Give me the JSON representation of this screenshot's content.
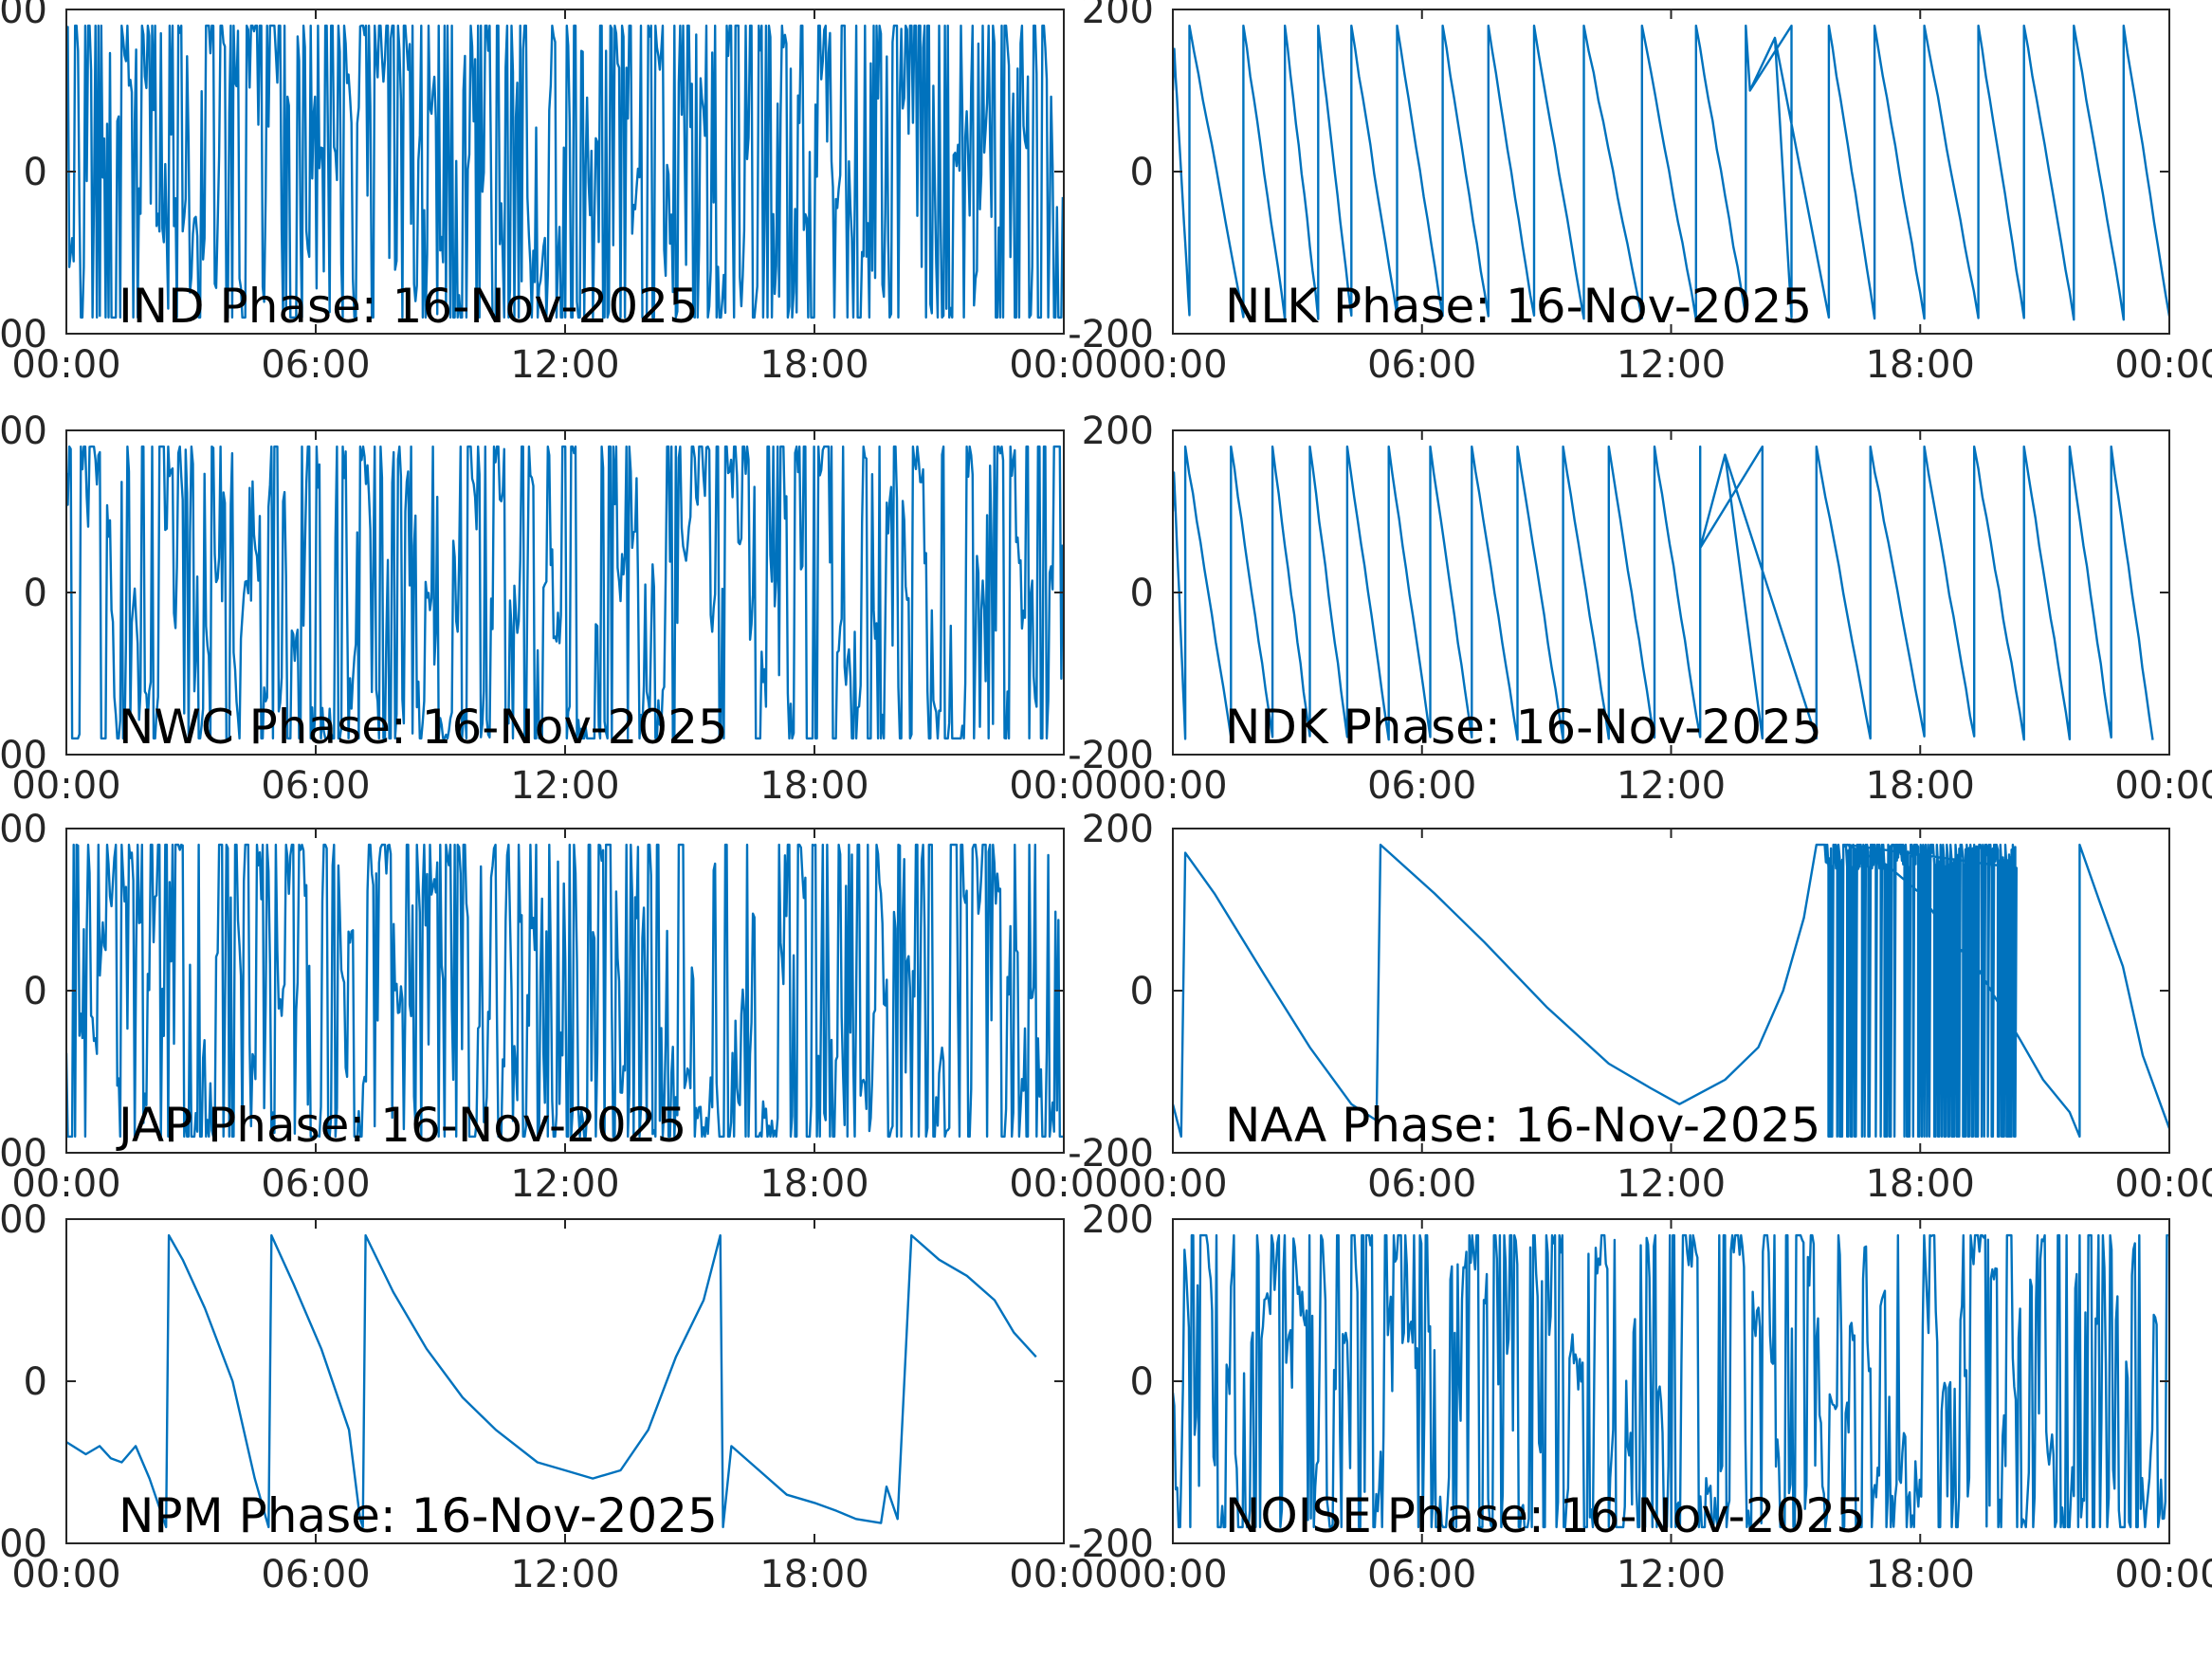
{
  "chart_data": {
    "type": "line",
    "layout": "4x2 grid",
    "x_ticks": [
      "00:00",
      "06:00",
      "12:00",
      "18:00",
      "00:00"
    ],
    "xlim_hours": [
      0,
      24
    ],
    "y_ticks": [
      200,
      0,
      -200
    ],
    "ylim": [
      -200,
      200
    ],
    "series_color": "#0072BD",
    "panels": [
      {
        "title": "IND Phase: 16-Nov-2025",
        "pattern": "noise",
        "density": 0.78
      },
      {
        "title": "NLK Phase: 16-Nov-2025",
        "pattern": "sawtooth",
        "wraps": [
          0.4,
          1.7,
          2.7,
          3.5,
          4.3,
          5.4,
          6.5,
          7.6,
          8.7,
          9.9,
          11.3,
          12.6,
          13.8,
          14.9,
          15.8,
          16.9,
          18.1,
          19.4,
          20.5,
          21.7,
          22.9,
          24.0
        ],
        "bump": {
          "t0": 13.2,
          "t1": 15.8,
          "min": 100,
          "peak": 165
        }
      },
      {
        "title": "NWC Phase: 16-Nov-2025",
        "pattern": "noise",
        "density": 0.55
      },
      {
        "title": "NDK Phase: 16-Nov-2025",
        "pattern": "sawtooth",
        "wraps": [
          0.3,
          1.4,
          2.4,
          3.3,
          4.2,
          5.2,
          6.2,
          7.2,
          8.3,
          9.4,
          10.5,
          11.6,
          12.7,
          14.2,
          15.5,
          16.8,
          18.1,
          19.3,
          20.5,
          21.6,
          22.6,
          23.6
        ],
        "bump": {
          "t0": 12.0,
          "t1": 14.6,
          "min": 55,
          "peak": 170
        }
      },
      {
        "title": "JAP Phase: 16-Nov-2025",
        "pattern": "noise",
        "density": 0.62
      },
      {
        "title": "NAA Phase: 16-Nov-2025",
        "pattern": "piecewise",
        "points": [
          [
            0,
            -140
          ],
          [
            0.2,
            -180
          ],
          [
            0.3,
            170
          ],
          [
            1.0,
            120
          ],
          [
            2.2,
            20
          ],
          [
            3.3,
            -70
          ],
          [
            4.3,
            -140
          ],
          [
            4.9,
            -160
          ],
          [
            4.9,
            -180
          ],
          [
            5.0,
            180
          ],
          [
            6.3,
            120
          ],
          [
            7.5,
            60
          ],
          [
            9.0,
            -20
          ],
          [
            10.5,
            -90
          ],
          [
            11.5,
            -120
          ],
          [
            12.2,
            -140
          ],
          [
            13.3,
            -110
          ],
          [
            14.1,
            -70
          ],
          [
            14.7,
            0
          ],
          [
            15.2,
            90
          ],
          [
            15.5,
            180
          ]
        ],
        "noise_block": [
          15.7,
          20.3
        ],
        "tail": [
          [
            20.3,
            180
          ],
          [
            21.5,
            155
          ],
          [
            22.5,
            120
          ],
          [
            23.5,
            60
          ],
          [
            24.2,
            30
          ],
          [
            25.5,
            -60
          ],
          [
            26.2,
            -110
          ],
          [
            27.0,
            -150
          ],
          [
            27.3,
            -180
          ],
          [
            27.3,
            180
          ],
          [
            27.9,
            110
          ],
          [
            28.6,
            30
          ],
          [
            29.2,
            -80
          ],
          [
            30.0,
            -170
          ]
        ],
        "spikes": [
          0.3,
          4.95,
          9.5,
          14.0
        ]
      },
      {
        "title": "NPM Phase: 16-Nov-2025",
        "pattern": "piecewise",
        "points": [
          [
            0,
            -75
          ],
          [
            0.7,
            -90
          ],
          [
            1.2,
            -80
          ],
          [
            1.6,
            -95
          ],
          [
            2.0,
            -100
          ],
          [
            2.5,
            -80
          ],
          [
            3.0,
            -120
          ],
          [
            3.6,
            -180
          ],
          [
            3.7,
            180
          ],
          [
            4.2,
            150
          ],
          [
            5.0,
            90
          ],
          [
            6.0,
            0
          ],
          [
            6.8,
            -120
          ],
          [
            7.3,
            -180
          ],
          [
            7.4,
            180
          ],
          [
            8.2,
            120
          ],
          [
            9.2,
            40
          ],
          [
            10.2,
            -60
          ],
          [
            10.6,
            -170
          ],
          [
            10.7,
            -180
          ],
          [
            10.8,
            180
          ],
          [
            11.8,
            110
          ],
          [
            13.0,
            40
          ],
          [
            14.3,
            -20
          ],
          [
            15.5,
            -60
          ],
          [
            17.0,
            -100
          ],
          [
            18.0,
            -110
          ],
          [
            19.0,
            -120
          ],
          [
            20.0,
            -110
          ],
          [
            21.0,
            -60
          ],
          [
            22.0,
            30
          ],
          [
            23.0,
            100
          ],
          [
            23.6,
            180
          ],
          [
            23.7,
            -180
          ],
          [
            24.0,
            -80
          ],
          [
            25.0,
            -110
          ],
          [
            26.0,
            -140
          ],
          [
            27.0,
            -150
          ],
          [
            27.8,
            -160
          ],
          [
            28.5,
            -170
          ],
          [
            29.4,
            -175
          ],
          [
            29.6,
            -130
          ],
          [
            30.0,
            -170
          ],
          [
            30.5,
            180
          ],
          [
            31.5,
            150
          ],
          [
            32.5,
            130
          ],
          [
            33.5,
            100
          ],
          [
            34.2,
            60
          ],
          [
            35.0,
            30
          ],
          [
            36.0,
            10
          ]
        ],
        "scale_x": 0.6667
      },
      {
        "title": "NOISE Phase: 16-Nov-2025",
        "pattern": "noise",
        "density": 0.5
      }
    ]
  }
}
